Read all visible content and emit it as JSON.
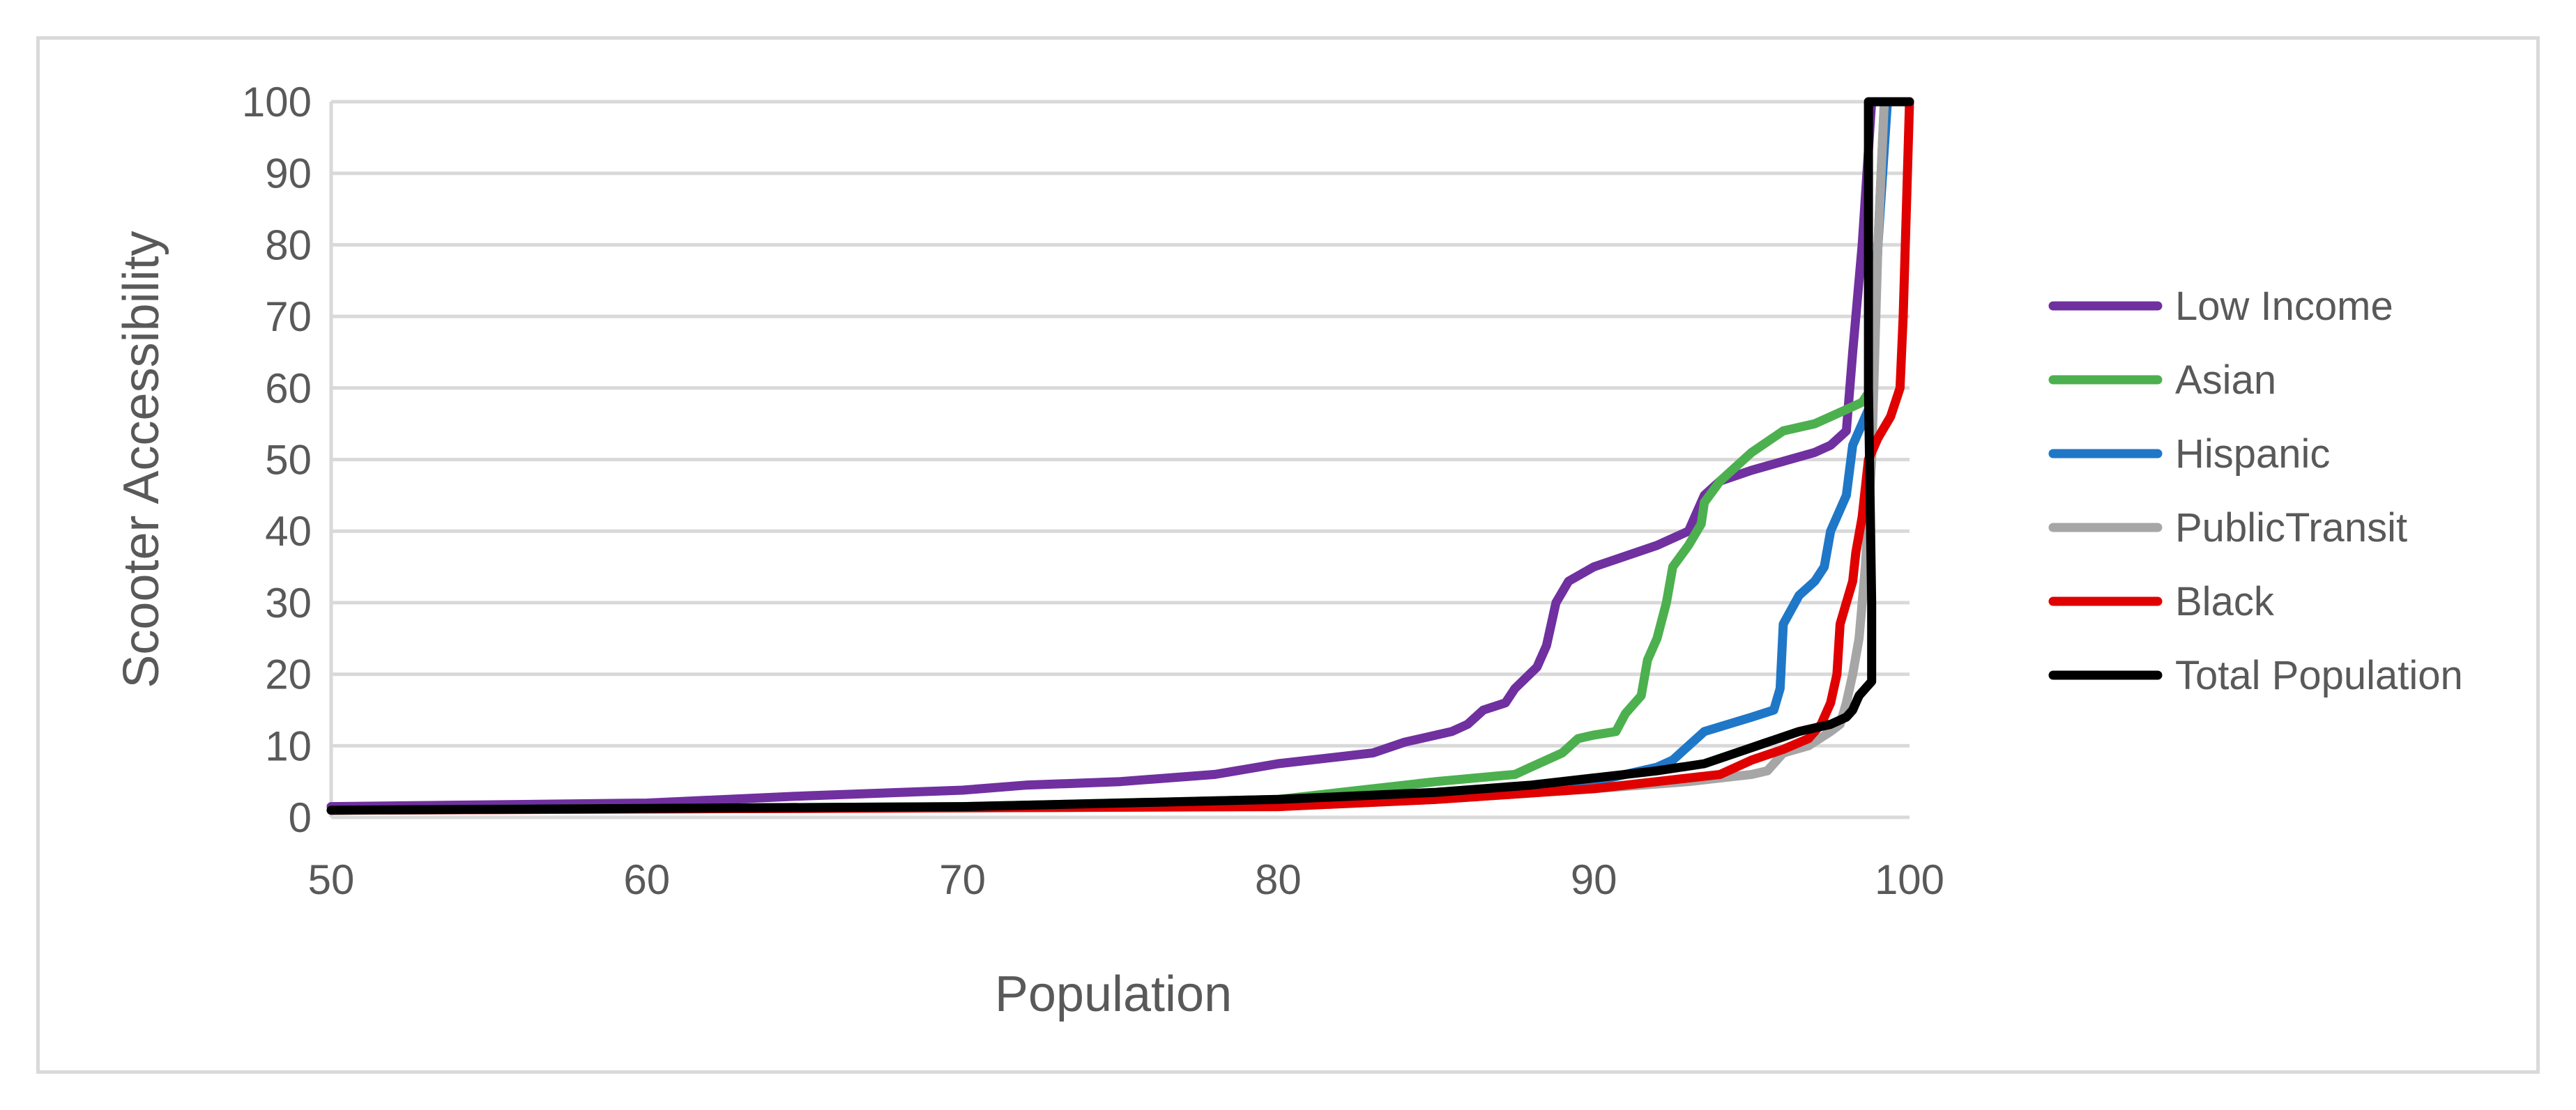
{
  "chart_data": {
    "type": "line",
    "title": "",
    "xlabel": "Population",
    "ylabel": "Scooter Accessibility",
    "xlim": [
      50,
      100
    ],
    "ylim": [
      0,
      100
    ],
    "xticks": [
      50,
      60,
      70,
      80,
      90,
      100
    ],
    "yticks": [
      0,
      10,
      20,
      30,
      40,
      50,
      60,
      70,
      80,
      90,
      100
    ],
    "grid": "horizontal",
    "legend_position": "right",
    "series": [
      {
        "name": "Low Income",
        "color": "#7030a0",
        "points": [
          [
            50,
            1.5
          ],
          [
            60,
            2
          ],
          [
            65,
            3
          ],
          [
            70,
            3.8
          ],
          [
            72,
            4.5
          ],
          [
            75,
            5
          ],
          [
            78,
            6
          ],
          [
            80,
            7.5
          ],
          [
            83,
            9
          ],
          [
            84,
            10.5
          ],
          [
            85.5,
            12
          ],
          [
            86,
            13
          ],
          [
            86.5,
            15
          ],
          [
            87.2,
            16
          ],
          [
            87.5,
            18
          ],
          [
            88.2,
            21
          ],
          [
            88.5,
            24
          ],
          [
            88.8,
            30
          ],
          [
            89.2,
            33
          ],
          [
            90,
            35
          ],
          [
            92,
            38
          ],
          [
            93,
            40
          ],
          [
            93.5,
            45
          ],
          [
            94,
            47
          ],
          [
            95,
            48.5
          ],
          [
            97,
            51
          ],
          [
            97.5,
            52
          ],
          [
            98,
            54
          ],
          [
            98.2,
            65
          ],
          [
            98.5,
            80
          ],
          [
            98.8,
            100
          ],
          [
            99,
            100
          ]
        ]
      },
      {
        "name": "Asian",
        "color": "#4cb04f",
        "points": [
          [
            50,
            1
          ],
          [
            70,
            1.5
          ],
          [
            80,
            2.5
          ],
          [
            82,
            3.5
          ],
          [
            85,
            5
          ],
          [
            87.5,
            6
          ],
          [
            88,
            7
          ],
          [
            89,
            9
          ],
          [
            89.5,
            11
          ],
          [
            90,
            11.5
          ],
          [
            90.7,
            12
          ],
          [
            91,
            14.5
          ],
          [
            91.5,
            17
          ],
          [
            91.7,
            22
          ],
          [
            92,
            25
          ],
          [
            92.3,
            30
          ],
          [
            92.5,
            35
          ],
          [
            93,
            38
          ],
          [
            93.4,
            41
          ],
          [
            93.5,
            44
          ],
          [
            94,
            47
          ],
          [
            95,
            51
          ],
          [
            96,
            54
          ],
          [
            97,
            55
          ],
          [
            97.5,
            56
          ],
          [
            98.5,
            58
          ],
          [
            98.8,
            60
          ],
          [
            99,
            80
          ],
          [
            99.2,
            100
          ],
          [
            99.5,
            100
          ]
        ]
      },
      {
        "name": "Hispanic",
        "color": "#1f77c8",
        "points": [
          [
            50,
            1
          ],
          [
            75,
            1.5
          ],
          [
            85,
            3
          ],
          [
            90,
            5
          ],
          [
            91,
            6
          ],
          [
            92,
            7
          ],
          [
            92.5,
            8
          ],
          [
            93,
            10
          ],
          [
            93.5,
            12
          ],
          [
            95,
            14
          ],
          [
            95.7,
            15
          ],
          [
            95.9,
            18
          ],
          [
            96,
            27
          ],
          [
            96.5,
            31
          ],
          [
            97,
            33
          ],
          [
            97.3,
            35
          ],
          [
            97.5,
            40
          ],
          [
            97.8,
            43
          ],
          [
            98,
            45
          ],
          [
            98.2,
            52
          ],
          [
            98.5,
            55
          ],
          [
            98.8,
            58
          ],
          [
            99,
            80
          ],
          [
            99.3,
            100
          ],
          [
            99.5,
            100
          ]
        ]
      },
      {
        "name": "PublicTransit",
        "color": "#a6a6a6",
        "points": [
          [
            50,
            1
          ],
          [
            80,
            1.5
          ],
          [
            85,
            2.5
          ],
          [
            90,
            4
          ],
          [
            93,
            5
          ],
          [
            95,
            6
          ],
          [
            95.5,
            6.5
          ],
          [
            95.8,
            8
          ],
          [
            96,
            9
          ],
          [
            96.8,
            10
          ],
          [
            97.5,
            12
          ],
          [
            97.8,
            13
          ],
          [
            98,
            16
          ],
          [
            98.2,
            20
          ],
          [
            98.4,
            25
          ],
          [
            98.6,
            35
          ],
          [
            98.8,
            50
          ],
          [
            99,
            80
          ],
          [
            99.2,
            100
          ],
          [
            99.5,
            100
          ]
        ]
      },
      {
        "name": "Black",
        "color": "#e00000",
        "points": [
          [
            50,
            1
          ],
          [
            80,
            1.5
          ],
          [
            85,
            2.5
          ],
          [
            90,
            4
          ],
          [
            92,
            5
          ],
          [
            94,
            6
          ],
          [
            95,
            8
          ],
          [
            96,
            9.5
          ],
          [
            96.8,
            11
          ],
          [
            97.2,
            13
          ],
          [
            97.5,
            16
          ],
          [
            97.7,
            20
          ],
          [
            97.8,
            27
          ],
          [
            98,
            30
          ],
          [
            98.2,
            33
          ],
          [
            98.3,
            37
          ],
          [
            98.5,
            42
          ],
          [
            98.6,
            46
          ],
          [
            98.7,
            50
          ],
          [
            99,
            53
          ],
          [
            99.4,
            56
          ],
          [
            99.7,
            60
          ],
          [
            99.8,
            70
          ],
          [
            99.9,
            85
          ],
          [
            100,
            100
          ]
        ]
      },
      {
        "name": "Total Population",
        "color": "#000000",
        "points": [
          [
            50,
            1
          ],
          [
            70,
            1.5
          ],
          [
            80,
            2.5
          ],
          [
            85,
            3.5
          ],
          [
            88,
            4.5
          ],
          [
            90,
            5.5
          ],
          [
            92,
            6.5
          ],
          [
            93.5,
            7.5
          ],
          [
            94.5,
            9
          ],
          [
            95.5,
            10.5
          ],
          [
            96.5,
            12
          ],
          [
            97.5,
            13
          ],
          [
            98,
            14
          ],
          [
            98.2,
            15
          ],
          [
            98.3,
            16
          ],
          [
            98.4,
            17
          ],
          [
            98.6,
            18
          ],
          [
            98.8,
            19
          ],
          [
            98.8,
            30
          ],
          [
            98.7,
            60
          ],
          [
            98.7,
            100
          ],
          [
            100,
            100
          ]
        ]
      }
    ]
  }
}
